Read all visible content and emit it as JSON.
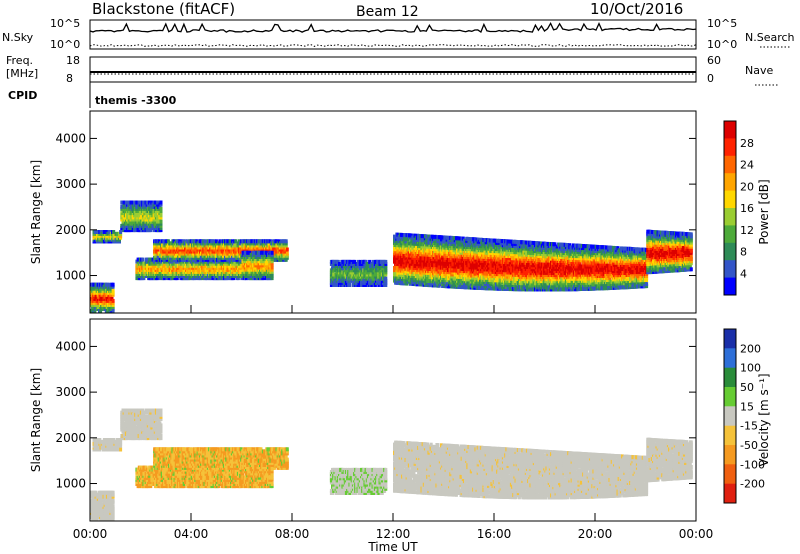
{
  "header": {
    "station": "Blackstone (fitACF)",
    "beam": "Beam 12",
    "date": "10/Oct/2016"
  },
  "top_panel": {
    "left_label": "N.Sky",
    "left_ticks": [
      "10^5",
      "10^0"
    ],
    "right_label": "N.Search",
    "right_ticks": [
      "10^5",
      "10^0"
    ]
  },
  "freq_panel": {
    "left_label_1": "Freq.",
    "left_label_2": "[MHz]",
    "left_ticks": [
      "18",
      "8"
    ],
    "right_label": "Nave",
    "right_ticks": [
      "60",
      "0"
    ]
  },
  "cpid_panel": {
    "label": "CPID",
    "mode": "themis -3300"
  },
  "chart_data": [
    {
      "type": "heatmap",
      "name": "power",
      "ylabel": "Slant Range [km]",
      "yticks": [
        "1000",
        "2000",
        "3000",
        "4000"
      ],
      "colorbar_label": "Power [dB]",
      "colorbar_ticks": [
        "4",
        "8",
        "12",
        "16",
        "20",
        "24",
        "28"
      ],
      "colors": [
        "#0000ff",
        "#3355c8",
        "#2e8b57",
        "#4daa3a",
        "#9acd32",
        "#ffd700",
        "#ffa500",
        "#ff6600",
        "#ff2200",
        "#dd0000"
      ]
    },
    {
      "type": "heatmap",
      "name": "velocity",
      "ylabel": "Slant Range [km]",
      "yticks": [
        "1000",
        "2000",
        "3000",
        "4000"
      ],
      "colorbar_label": "Velocity [m s⁻¹]",
      "colorbar_ticks": [
        "200",
        "100",
        "50",
        "15",
        "-15",
        "-50",
        "-100",
        "-200"
      ],
      "colors": [
        "#1a2fa8",
        "#2e6fd8",
        "#2a8c3a",
        "#66cc33",
        "#c8c8c0",
        "#f5c23a",
        "#f59a20",
        "#f06010",
        "#e02010"
      ]
    }
  ],
  "x_axis": {
    "ticks": [
      "00:00",
      "04:00",
      "08:00",
      "12:00",
      "16:00",
      "20:00",
      "00:00"
    ],
    "label": "Time UT"
  }
}
